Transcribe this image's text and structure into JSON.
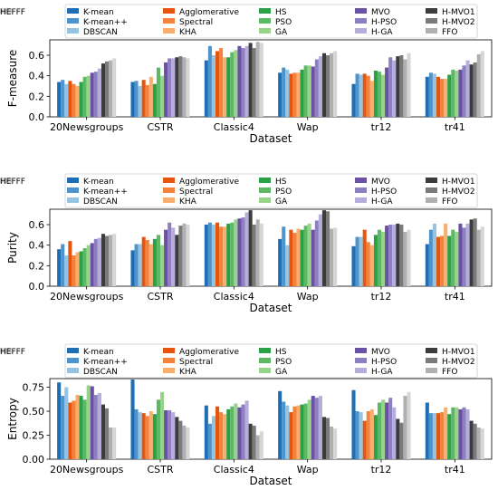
{
  "colors": [
    "#1f6eb4",
    "#4f93cc",
    "#96c4e0",
    "#e6550d",
    "#f4823c",
    "#f9ae6c",
    "#2ca046",
    "#5cb865",
    "#98d38c",
    "#6a51a3",
    "#8e7fc0",
    "#b6addb",
    "#3c3c3c",
    "#7a7a7a",
    "#b0b0b0",
    "#d6d6d6"
  ],
  "chart_data": [
    {
      "type": "bar",
      "ylabel": "F-measure",
      "xlabel": "Dataset",
      "ylim": [
        0,
        0.75
      ],
      "yticks": [
        "0.0",
        "0.2",
        "0.4",
        "0.6"
      ],
      "ytick_values": [
        0,
        0.2,
        0.4,
        0.6
      ],
      "categories": [
        "20Newsgroups",
        "CSTR",
        "Classic4",
        "Wap",
        "tr12",
        "tr41"
      ],
      "legend": [
        "K-mean",
        "K-mean++",
        "DBSCAN",
        "Agglomerative",
        "Spectral",
        "KHA",
        "HS",
        "PSO",
        "GA",
        "MVO",
        "H-PSO",
        "H-GA",
        "H-MVO1",
        "H-MVO2",
        "FFO",
        "HEFFF"
      ],
      "series": [
        {
          "name": "K-mean",
          "values": [
            0.34,
            0.34,
            0.55,
            0.43,
            0.32,
            0.39
          ]
        },
        {
          "name": "K-mean++",
          "values": [
            0.36,
            0.35,
            0.69,
            0.48,
            0.42,
            0.43
          ]
        },
        {
          "name": "DBSCAN",
          "values": [
            0.32,
            0.3,
            0.6,
            0.46,
            0.41,
            0.42
          ]
        },
        {
          "name": "Agglomerative",
          "values": [
            0.35,
            0.36,
            0.64,
            0.42,
            0.42,
            0.39
          ]
        },
        {
          "name": "Spectral",
          "values": [
            0.32,
            0.31,
            0.67,
            0.43,
            0.4,
            0.37
          ]
        },
        {
          "name": "KHA",
          "values": [
            0.3,
            0.39,
            0.58,
            0.43,
            0.35,
            0.37
          ]
        },
        {
          "name": "HS",
          "values": [
            0.34,
            0.32,
            0.58,
            0.46,
            0.45,
            0.41
          ]
        },
        {
          "name": "PSO",
          "values": [
            0.39,
            0.48,
            0.63,
            0.5,
            0.44,
            0.46
          ]
        },
        {
          "name": "GA",
          "values": [
            0.4,
            0.4,
            0.65,
            0.5,
            0.41,
            0.45
          ]
        },
        {
          "name": "MVO",
          "values": [
            0.43,
            0.53,
            0.69,
            0.49,
            0.48,
            0.46
          ]
        },
        {
          "name": "H-PSO",
          "values": [
            0.44,
            0.57,
            0.67,
            0.56,
            0.58,
            0.5
          ]
        },
        {
          "name": "H-GA",
          "values": [
            0.47,
            0.57,
            0.69,
            0.59,
            0.55,
            0.55
          ]
        },
        {
          "name": "H-MVO1",
          "values": [
            0.52,
            0.58,
            0.72,
            0.62,
            0.59,
            0.51
          ]
        },
        {
          "name": "H-MVO2",
          "values": [
            0.54,
            0.59,
            0.67,
            0.6,
            0.6,
            0.53
          ]
        },
        {
          "name": "FFO",
          "values": [
            0.55,
            0.58,
            0.73,
            0.62,
            0.56,
            0.61
          ]
        },
        {
          "name": "HEFFF",
          "values": [
            0.57,
            0.57,
            0.72,
            0.64,
            0.62,
            0.64
          ]
        }
      ]
    },
    {
      "type": "bar",
      "ylabel": "Purity",
      "xlabel": "Dataset",
      "ylim": [
        0,
        0.75
      ],
      "yticks": [
        "0.0",
        "0.2",
        "0.4",
        "0.6"
      ],
      "ytick_values": [
        0,
        0.2,
        0.4,
        0.6
      ],
      "categories": [
        "20Newsgroups",
        "CSTR",
        "Classic4",
        "Wap",
        "tr12",
        "tr41"
      ],
      "legend": [
        "K-mean",
        "K-mean++",
        "DBSCAN",
        "Agglomerative",
        "Spectral",
        "KHA",
        "HS",
        "PSO",
        "GA",
        "MVO",
        "H-PSO",
        "H-GA",
        "H-MVO1",
        "H-MVO2",
        "FFO",
        "HEFFF"
      ],
      "series": [
        {
          "name": "K-mean",
          "values": [
            0.36,
            0.35,
            0.6,
            0.46,
            0.39,
            0.41
          ]
        },
        {
          "name": "K-mean++",
          "values": [
            0.41,
            0.41,
            0.62,
            0.58,
            0.48,
            0.55
          ]
        },
        {
          "name": "DBSCAN",
          "values": [
            0.3,
            0.41,
            0.6,
            0.4,
            0.48,
            0.61
          ]
        },
        {
          "name": "Agglomerative",
          "values": [
            0.44,
            0.48,
            0.62,
            0.55,
            0.55,
            0.48
          ]
        },
        {
          "name": "Spectral",
          "values": [
            0.3,
            0.45,
            0.58,
            0.52,
            0.43,
            0.49
          ]
        },
        {
          "name": "KHA",
          "values": [
            0.33,
            0.41,
            0.58,
            0.56,
            0.4,
            0.61
          ]
        },
        {
          "name": "HS",
          "values": [
            0.34,
            0.46,
            0.61,
            0.55,
            0.5,
            0.49
          ]
        },
        {
          "name": "PSO",
          "values": [
            0.37,
            0.5,
            0.62,
            0.59,
            0.55,
            0.55
          ]
        },
        {
          "name": "GA",
          "values": [
            0.4,
            0.4,
            0.65,
            0.61,
            0.53,
            0.53
          ]
        },
        {
          "name": "MVO",
          "values": [
            0.42,
            0.55,
            0.66,
            0.55,
            0.59,
            0.61
          ]
        },
        {
          "name": "H-PSO",
          "values": [
            0.46,
            0.62,
            0.67,
            0.64,
            0.6,
            0.57
          ]
        },
        {
          "name": "H-GA",
          "values": [
            0.47,
            0.57,
            0.72,
            0.7,
            0.6,
            0.61
          ]
        },
        {
          "name": "H-MVO1",
          "values": [
            0.51,
            0.5,
            0.74,
            0.74,
            0.61,
            0.65
          ]
        },
        {
          "name": "H-MVO2",
          "values": [
            0.49,
            0.59,
            0.6,
            0.73,
            0.6,
            0.66
          ]
        },
        {
          "name": "FFO",
          "values": [
            0.5,
            0.61,
            0.65,
            0.56,
            0.53,
            0.55
          ]
        },
        {
          "name": "HEFFF",
          "values": [
            0.51,
            0.6,
            0.61,
            0.57,
            0.55,
            0.58
          ]
        }
      ]
    },
    {
      "type": "bar",
      "ylabel": "Entropy",
      "xlabel": "Dataset",
      "ylim": [
        0,
        0.84
      ],
      "yticks": [
        "0.00",
        "0.25",
        "0.50",
        "0.75"
      ],
      "ytick_values": [
        0,
        0.25,
        0.5,
        0.75
      ],
      "categories": [
        "20Newsgroups",
        "CSTR",
        "Classic4",
        "Wap",
        "tr12",
        "tr41"
      ],
      "legend": [
        "K-mean",
        "K-mean++",
        "DBSCAN",
        "Agglomerative",
        "Spectral",
        "KHA",
        "HS",
        "PSO",
        "GA",
        "MVO",
        "H-PSO",
        "H-GA",
        "H-MVO1",
        "H-MVO2",
        "FFO",
        "HEFFF"
      ],
      "series": [
        {
          "name": "K-mean",
          "values": [
            0.8,
            0.83,
            0.56,
            0.71,
            0.72,
            0.59
          ]
        },
        {
          "name": "K-mean++",
          "values": [
            0.66,
            0.52,
            0.37,
            0.6,
            0.5,
            0.48
          ]
        },
        {
          "name": "DBSCAN",
          "values": [
            0.75,
            0.49,
            0.45,
            0.56,
            0.49,
            0.48
          ]
        },
        {
          "name": "Agglomerative",
          "values": [
            0.59,
            0.48,
            0.55,
            0.49,
            0.4,
            0.48
          ]
        },
        {
          "name": "Spectral",
          "values": [
            0.61,
            0.45,
            0.49,
            0.55,
            0.5,
            0.49
          ]
        },
        {
          "name": "KHA",
          "values": [
            0.67,
            0.5,
            0.47,
            0.56,
            0.52,
            0.54
          ]
        },
        {
          "name": "HS",
          "values": [
            0.66,
            0.47,
            0.52,
            0.57,
            0.46,
            0.47
          ]
        },
        {
          "name": "PSO",
          "values": [
            0.62,
            0.62,
            0.55,
            0.58,
            0.59,
            0.54
          ]
        },
        {
          "name": "GA",
          "values": [
            0.77,
            0.7,
            0.58,
            0.62,
            0.62,
            0.54
          ]
        },
        {
          "name": "MVO",
          "values": [
            0.76,
            0.51,
            0.54,
            0.66,
            0.59,
            0.52
          ]
        },
        {
          "name": "H-PSO",
          "values": [
            0.67,
            0.51,
            0.57,
            0.64,
            0.64,
            0.54
          ]
        },
        {
          "name": "H-GA",
          "values": [
            0.69,
            0.49,
            0.61,
            0.66,
            0.54,
            0.52
          ]
        },
        {
          "name": "H-MVO1",
          "values": [
            0.57,
            0.44,
            0.37,
            0.44,
            0.42,
            0.4
          ]
        },
        {
          "name": "H-MVO2",
          "values": [
            0.53,
            0.4,
            0.35,
            0.43,
            0.38,
            0.37
          ]
        },
        {
          "name": "FFO",
          "values": [
            0.33,
            0.35,
            0.25,
            0.34,
            0.66,
            0.33
          ]
        },
        {
          "name": "HEFFF",
          "values": [
            0.33,
            0.33,
            0.29,
            0.32,
            0.7,
            0.32
          ]
        }
      ]
    }
  ]
}
